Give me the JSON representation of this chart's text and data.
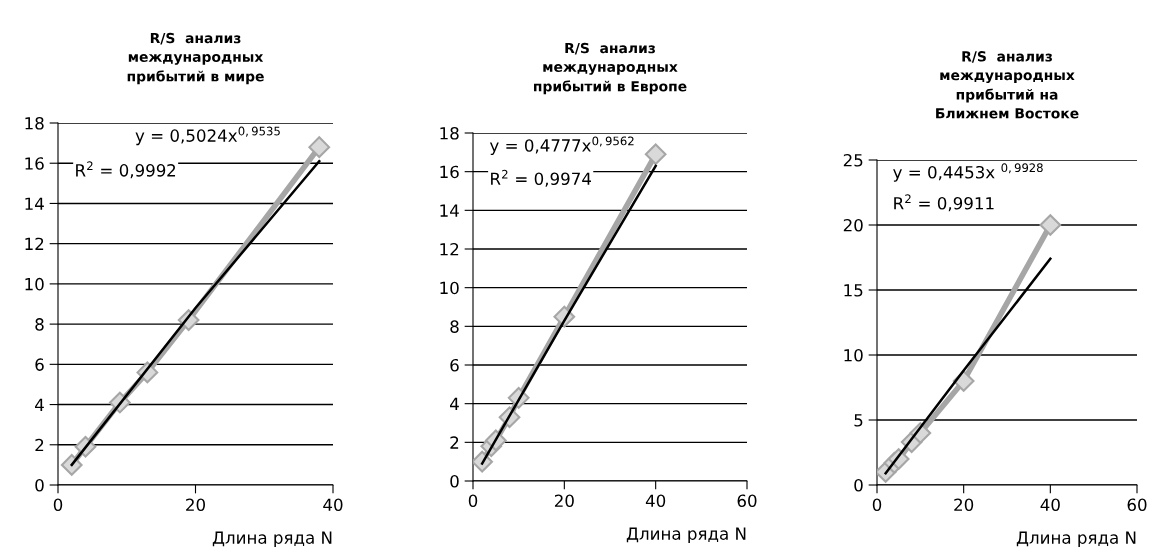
{
  "chart_data": [
    {
      "type": "line",
      "title": "R/S  анализ\nмеждународных\nприбытий в мире",
      "xlabel": "Длина ряда N",
      "annotations": [
        "y = 0,5024x$^{0,9535}$",
        "R$^{2}$ = 0,9992"
      ],
      "xlim": [
        0,
        40
      ],
      "xticks": [
        0,
        20,
        40
      ],
      "ylim": [
        0,
        18
      ],
      "yticks": [
        0,
        2,
        4,
        6,
        8,
        10,
        12,
        14,
        16,
        18
      ],
      "grid": "y",
      "series": [
        {
          "color": "#a6a6a6",
          "marker": "diamond",
          "x": [
            2,
            4,
            9,
            13,
            19,
            38
          ],
          "values": [
            1.0,
            1.9,
            4.1,
            5.6,
            8.2,
            16.8
          ]
        },
        {
          "color": "#000000",
          "marker": "none",
          "x": [
            2,
            20,
            38
          ],
          "values": [
            1.0,
            8.8,
            16.1
          ]
        }
      ]
    },
    {
      "type": "line",
      "title": "R/S  анализ\nмеждународных\nприбытий в Европе",
      "xlabel": "Длина ряда N",
      "annotations": [
        "y = 0,4777x$^{0,9562}$",
        "R$^{2}$ = 0,9974"
      ],
      "xlim": [
        0,
        60
      ],
      "xticks": [
        0,
        20,
        40,
        60
      ],
      "ylim": [
        0,
        18
      ],
      "yticks": [
        0,
        2,
        4,
        6,
        8,
        10,
        12,
        14,
        16,
        18
      ],
      "grid": "y",
      "series": [
        {
          "color": "#a6a6a6",
          "marker": "diamond",
          "x": [
            2,
            4,
            5,
            8,
            10,
            20,
            40
          ],
          "values": [
            1.0,
            1.8,
            2.1,
            3.3,
            4.3,
            8.5,
            16.9
          ]
        },
        {
          "color": "#000000",
          "marker": "none",
          "x": [
            2,
            20,
            40
          ],
          "values": [
            0.9,
            8.3,
            16.3
          ]
        }
      ]
    },
    {
      "type": "line",
      "title": "R/S  анализ\nмеждународных\nприбытий на\nБлижнем Востоке",
      "xlabel": "Длина ряда N",
      "annotations": [
        "y = 0,4453x $^{0,9928}$",
        "R$^{2}$ = 0,9911"
      ],
      "xlim": [
        0,
        60
      ],
      "xticks": [
        0,
        20,
        40,
        60
      ],
      "ylim": [
        0,
        25
      ],
      "yticks": [
        0,
        5,
        10,
        15,
        20,
        25
      ],
      "grid": "y",
      "series": [
        {
          "color": "#a6a6a6",
          "marker": "diamond",
          "x": [
            2,
            4,
            5,
            8,
            10,
            20,
            40
          ],
          "values": [
            1.0,
            1.7,
            2.0,
            3.3,
            4.0,
            8.0,
            20.0
          ]
        },
        {
          "color": "#000000",
          "marker": "none",
          "x": [
            2,
            20,
            40
          ],
          "values": [
            0.9,
            8.8,
            17.4
          ]
        }
      ]
    }
  ]
}
